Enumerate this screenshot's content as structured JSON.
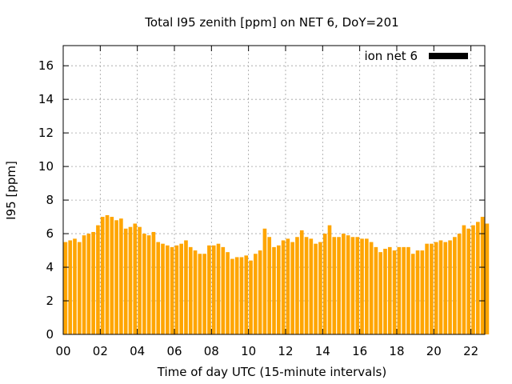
{
  "chart_data": {
    "type": "bar",
    "title": "Total I95 zenith [ppm] on NET 6, DoY=201",
    "xlabel": "Time of day UTC (15-minute intervals)",
    "ylabel": "I95 [ppm]",
    "xlim": [
      0,
      22.75
    ],
    "ylim": [
      0,
      17.2
    ],
    "x_ticks": [
      "00",
      "02",
      "04",
      "06",
      "08",
      "10",
      "12",
      "14",
      "16",
      "18",
      "20",
      "22"
    ],
    "y_ticks": [
      "0",
      "2",
      "4",
      "6",
      "8",
      "10",
      "12",
      "14",
      "16"
    ],
    "grid": true,
    "legend_position": "top-right",
    "bar_color": "#ffa500",
    "series": [
      {
        "name": "ion net 6",
        "legend_color": "#000000",
        "interval_hours": 0.25,
        "values": [
          5.5,
          5.6,
          5.7,
          5.5,
          5.9,
          6.0,
          6.1,
          6.5,
          7.0,
          7.1,
          7.0,
          6.8,
          6.9,
          6.3,
          6.4,
          6.6,
          6.4,
          6.0,
          5.9,
          6.1,
          5.5,
          5.4,
          5.3,
          5.2,
          5.3,
          5.4,
          5.6,
          5.2,
          5.0,
          4.8,
          4.8,
          5.3,
          5.3,
          5.4,
          5.2,
          4.9,
          4.5,
          4.6,
          4.6,
          4.7,
          4.4,
          4.8,
          5.0,
          6.3,
          5.8,
          5.2,
          5.3,
          5.6,
          5.7,
          5.5,
          5.8,
          6.2,
          5.8,
          5.7,
          5.4,
          5.5,
          6.0,
          6.5,
          5.8,
          5.8,
          6.0,
          5.9,
          5.8,
          5.8,
          5.7,
          5.7,
          5.5,
          5.2,
          4.9,
          5.1,
          5.2,
          5.0,
          5.2,
          5.2,
          5.2,
          4.8,
          5.0,
          5.0,
          5.4,
          5.4,
          5.5,
          5.6,
          5.5,
          5.6,
          5.8,
          6.0,
          6.5,
          6.3,
          6.5,
          6.7,
          7.0,
          6.6
        ]
      }
    ]
  }
}
